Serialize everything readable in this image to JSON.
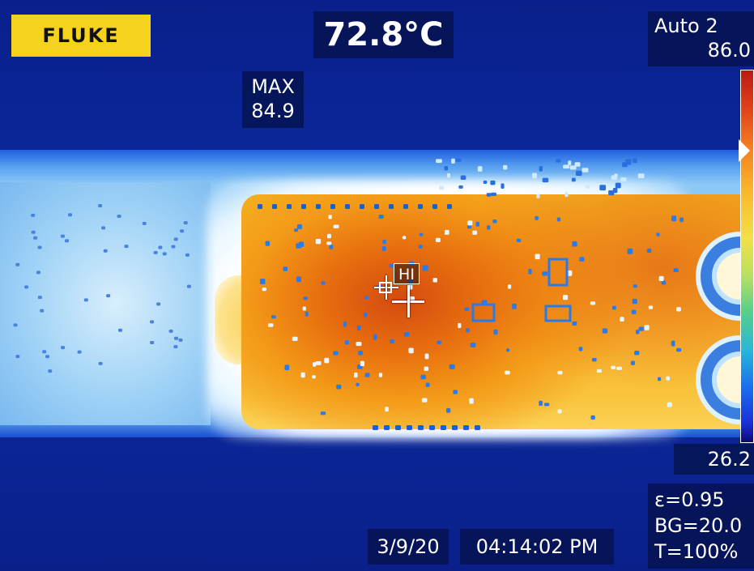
{
  "brand": "FLUKE",
  "center_temperature": "72.8°C",
  "max": {
    "label": "MAX",
    "value": "84.9"
  },
  "range": {
    "mode": "Auto 2",
    "max": "86.0",
    "min": "26.2"
  },
  "params": {
    "emissivity": "ε=0.95",
    "background": "BG=20.0",
    "transmission": "T=100%"
  },
  "date": "3/9/20",
  "time": "04:14:02 PM",
  "hotspot_label": "HI",
  "palette_colors": {
    "hot": "#b81a14",
    "mid": "#f9b62a",
    "cold": "#0b0a70",
    "logo": "#f5d21c"
  }
}
